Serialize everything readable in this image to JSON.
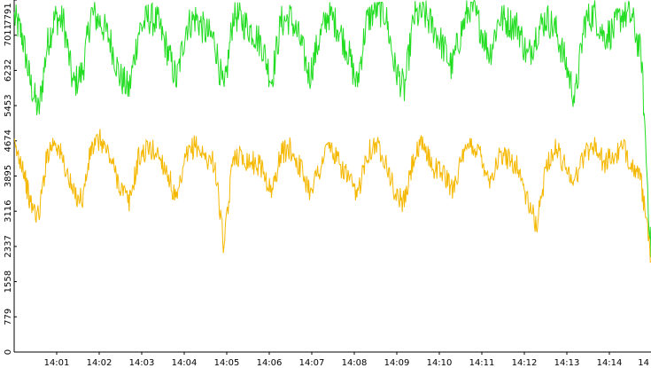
{
  "chart_data": {
    "type": "line",
    "title": "",
    "xlabel": "",
    "ylabel": "",
    "x_ticks": [
      "14:01",
      "14:02",
      "14:03",
      "14:04",
      "14:05",
      "14:06",
      "14:07",
      "14:08",
      "14:09",
      "14:10",
      "14:11",
      "14:12",
      "14:13",
      "14:14",
      "14"
    ],
    "y_ticks": [
      "0",
      "779",
      "1558",
      "2337",
      "3116",
      "3895",
      "4674",
      "5453",
      "6232",
      "7011",
      "7791"
    ],
    "ylim": [
      0,
      7791
    ],
    "x_range_minutes": [
      14.3333,
      15.0
    ],
    "grid": false,
    "legend": "none",
    "series": [
      {
        "color": "#22dd22",
        "x_minutes": [
          14.34,
          14.52,
          14.7,
          14.9,
          15.1,
          15.28,
          15.48,
          15.7,
          15.92,
          16.12,
          16.34,
          16.56,
          16.78,
          17.0,
          17.22,
          17.44,
          17.66,
          17.88,
          18.1,
          18.32,
          18.54,
          18.76,
          18.98,
          19.2,
          19.42,
          19.64,
          19.86,
          20.08,
          20.3,
          20.52,
          20.74,
          20.96,
          21.18,
          21.4,
          21.62,
          21.84,
          22.06,
          22.28,
          22.5,
          22.72,
          22.94,
          23.16,
          23.38,
          23.6,
          23.82,
          24.04,
          24.26,
          24.48,
          24.7,
          24.92,
          25.14,
          25.36,
          25.58,
          25.8,
          26.02,
          26.24,
          26.46,
          26.68,
          26.9,
          27.12,
          27.34,
          27.56,
          27.78,
          28.0,
          28.22,
          28.44,
          28.66,
          28.88,
          29.1
        ],
        "values": [
          7400,
          7000,
          6000,
          5300,
          6800,
          7400,
          7300,
          5900,
          6200,
          7500,
          7300,
          6900,
          6100,
          5800,
          7100,
          7400,
          7300,
          6700,
          6000,
          7200,
          7400,
          7100,
          6900,
          5700,
          7500,
          7300,
          7100,
          6800,
          6000,
          7300,
          7400,
          6900,
          6100,
          6900,
          7500,
          7200,
          6700,
          5900,
          7300,
          7600,
          7500,
          6300,
          5800,
          7400,
          7500,
          7200,
          6800,
          6300,
          7100,
          7700,
          7200,
          6600,
          7400,
          7300,
          7200,
          6500,
          7100,
          7400,
          7100,
          6400,
          5600,
          7300,
          7500,
          7000,
          7100,
          7500,
          7400,
          6500,
          2100
        ]
      },
      {
        "color": "#f5b800",
        "x_minutes": [
          14.34,
          14.52,
          14.7,
          14.9,
          15.1,
          15.28,
          15.48,
          15.7,
          15.92,
          16.12,
          16.34,
          16.56,
          16.78,
          17.0,
          17.22,
          17.44,
          17.66,
          17.88,
          18.1,
          18.32,
          18.54,
          18.76,
          18.98,
          19.2,
          19.42,
          19.64,
          19.86,
          20.08,
          20.3,
          20.52,
          20.74,
          20.96,
          21.18,
          21.4,
          21.62,
          21.84,
          22.06,
          22.28,
          22.5,
          22.72,
          22.94,
          23.16,
          23.38,
          23.6,
          23.82,
          24.04,
          24.26,
          24.48,
          24.7,
          24.92,
          25.14,
          25.36,
          25.58,
          25.8,
          26.02,
          26.24,
          26.46,
          26.68,
          26.9,
          27.12,
          27.34,
          27.56,
          27.78,
          28.0,
          28.22,
          28.44,
          28.66,
          28.88,
          29.1
        ],
        "values": [
          4500,
          4200,
          3300,
          3000,
          4400,
          4700,
          4200,
          3500,
          3400,
          4500,
          4700,
          4300,
          3700,
          3300,
          4300,
          4500,
          4400,
          4000,
          3300,
          4300,
          4600,
          4300,
          4200,
          2300,
          4400,
          4300,
          4200,
          4100,
          3500,
          4400,
          4500,
          4100,
          3600,
          4000,
          4600,
          4200,
          3900,
          3400,
          4400,
          4600,
          4300,
          3500,
          3300,
          4300,
          4600,
          4100,
          4000,
          3600,
          4200,
          4600,
          4400,
          3800,
          4300,
          4300,
          4100,
          3300,
          2800,
          4200,
          4500,
          4100,
          3800,
          4400,
          4600,
          4200,
          4300,
          4500,
          4200,
          3700,
          2000
        ]
      }
    ]
  }
}
